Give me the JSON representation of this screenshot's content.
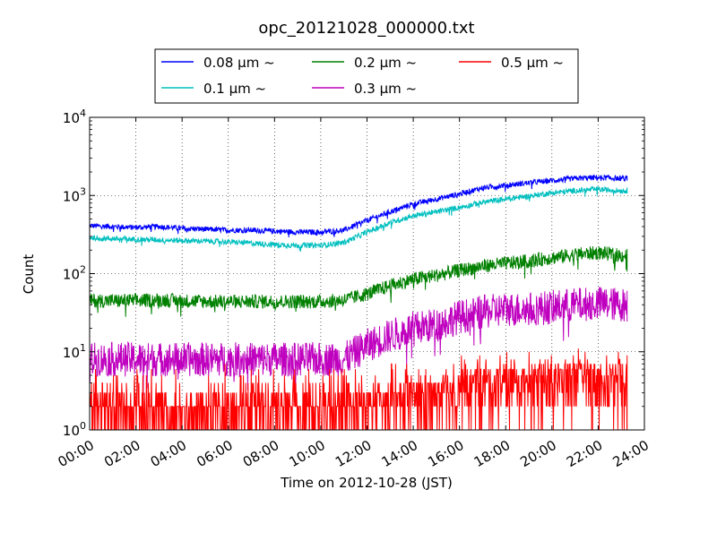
{
  "chart_data": {
    "type": "line",
    "title": "opc_20121028_000000.txt",
    "xlabel": "Time on 2012-10-28 (JST)",
    "ylabel": "Count",
    "yscale": "log",
    "ylim": [
      1,
      10000
    ],
    "xlim": [
      "00:00",
      "24:00"
    ],
    "x_ticks": [
      "00:00",
      "02:00",
      "04:00",
      "06:00",
      "08:00",
      "10:00",
      "12:00",
      "14:00",
      "16:00",
      "18:00",
      "20:00",
      "22:00",
      "24:00"
    ],
    "y_ticks": [
      {
        "base": "10",
        "exp": "0",
        "value": 1
      },
      {
        "base": "10",
        "exp": "1",
        "value": 10
      },
      {
        "base": "10",
        "exp": "2",
        "value": 100
      },
      {
        "base": "10",
        "exp": "3",
        "value": 1000
      },
      {
        "base": "10",
        "exp": "4",
        "value": 10000
      }
    ],
    "grid": true,
    "legend_position": "top-center",
    "series": [
      {
        "name": "0.08 μm ~",
        "color": "#0000ff",
        "x": [
          "00:00",
          "01:00",
          "02:00",
          "03:00",
          "04:00",
          "05:00",
          "06:00",
          "07:00",
          "08:00",
          "09:00",
          "10:00",
          "11:00",
          "12:00",
          "13:00",
          "14:00",
          "15:00",
          "16:00",
          "17:00",
          "18:00",
          "19:00",
          "20:00",
          "21:00",
          "22:00",
          "23:00"
        ],
        "values": [
          410,
          400,
          390,
          400,
          380,
          370,
          360,
          360,
          350,
          340,
          340,
          360,
          480,
          620,
          780,
          900,
          1050,
          1250,
          1350,
          1450,
          1550,
          1650,
          1700,
          1650
        ]
      },
      {
        "name": "0.1 μm ~",
        "color": "#00bfbf",
        "x": [
          "00:00",
          "01:00",
          "02:00",
          "03:00",
          "04:00",
          "05:00",
          "06:00",
          "07:00",
          "08:00",
          "09:00",
          "10:00",
          "11:00",
          "12:00",
          "13:00",
          "14:00",
          "15:00",
          "16:00",
          "17:00",
          "18:00",
          "19:00",
          "20:00",
          "21:00",
          "22:00",
          "23:00"
        ],
        "values": [
          290,
          280,
          275,
          270,
          265,
          260,
          255,
          245,
          235,
          230,
          230,
          250,
          340,
          450,
          550,
          620,
          700,
          820,
          900,
          980,
          1080,
          1150,
          1200,
          1150
        ]
      },
      {
        "name": "0.2 μm ~",
        "color": "#008000",
        "x": [
          "00:00",
          "01:00",
          "02:00",
          "03:00",
          "04:00",
          "05:00",
          "06:00",
          "07:00",
          "08:00",
          "09:00",
          "10:00",
          "11:00",
          "12:00",
          "13:00",
          "14:00",
          "15:00",
          "16:00",
          "17:00",
          "18:00",
          "19:00",
          "20:00",
          "21:00",
          "22:00",
          "23:00"
        ],
        "values": [
          45,
          45,
          45,
          46,
          45,
          44,
          44,
          44,
          44,
          44,
          44,
          46,
          55,
          70,
          85,
          95,
          110,
          125,
          135,
          145,
          160,
          175,
          185,
          170
        ]
      },
      {
        "name": "0.3 μm ~",
        "color": "#bf00bf",
        "x": [
          "00:00",
          "01:00",
          "02:00",
          "03:00",
          "04:00",
          "05:00",
          "06:00",
          "07:00",
          "08:00",
          "09:00",
          "10:00",
          "11:00",
          "12:00",
          "13:00",
          "14:00",
          "15:00",
          "16:00",
          "17:00",
          "18:00",
          "19:00",
          "20:00",
          "21:00",
          "22:00",
          "23:00"
        ],
        "values": [
          8,
          8,
          8,
          8,
          8,
          8,
          8,
          8,
          8,
          8,
          8,
          8,
          12,
          16,
          20,
          22,
          28,
          32,
          35,
          35,
          37,
          40,
          42,
          40
        ]
      },
      {
        "name": "0.5 μm ~",
        "color": "#ff0000",
        "x": [
          "00:00",
          "01:00",
          "02:00",
          "03:00",
          "04:00",
          "05:00",
          "06:00",
          "07:00",
          "08:00",
          "09:00",
          "10:00",
          "11:00",
          "12:00",
          "13:00",
          "14:00",
          "15:00",
          "16:00",
          "17:00",
          "18:00",
          "19:00",
          "20:00",
          "21:00",
          "22:00",
          "23:00"
        ],
        "values": [
          1.5,
          1.5,
          1.5,
          1.5,
          1.5,
          1.5,
          1.5,
          1.5,
          1.5,
          1.5,
          1.5,
          1.5,
          1.8,
          2.0,
          2.3,
          2.5,
          3.0,
          3.3,
          3.5,
          3.5,
          3.8,
          4.0,
          4.0,
          4.0
        ]
      }
    ]
  }
}
